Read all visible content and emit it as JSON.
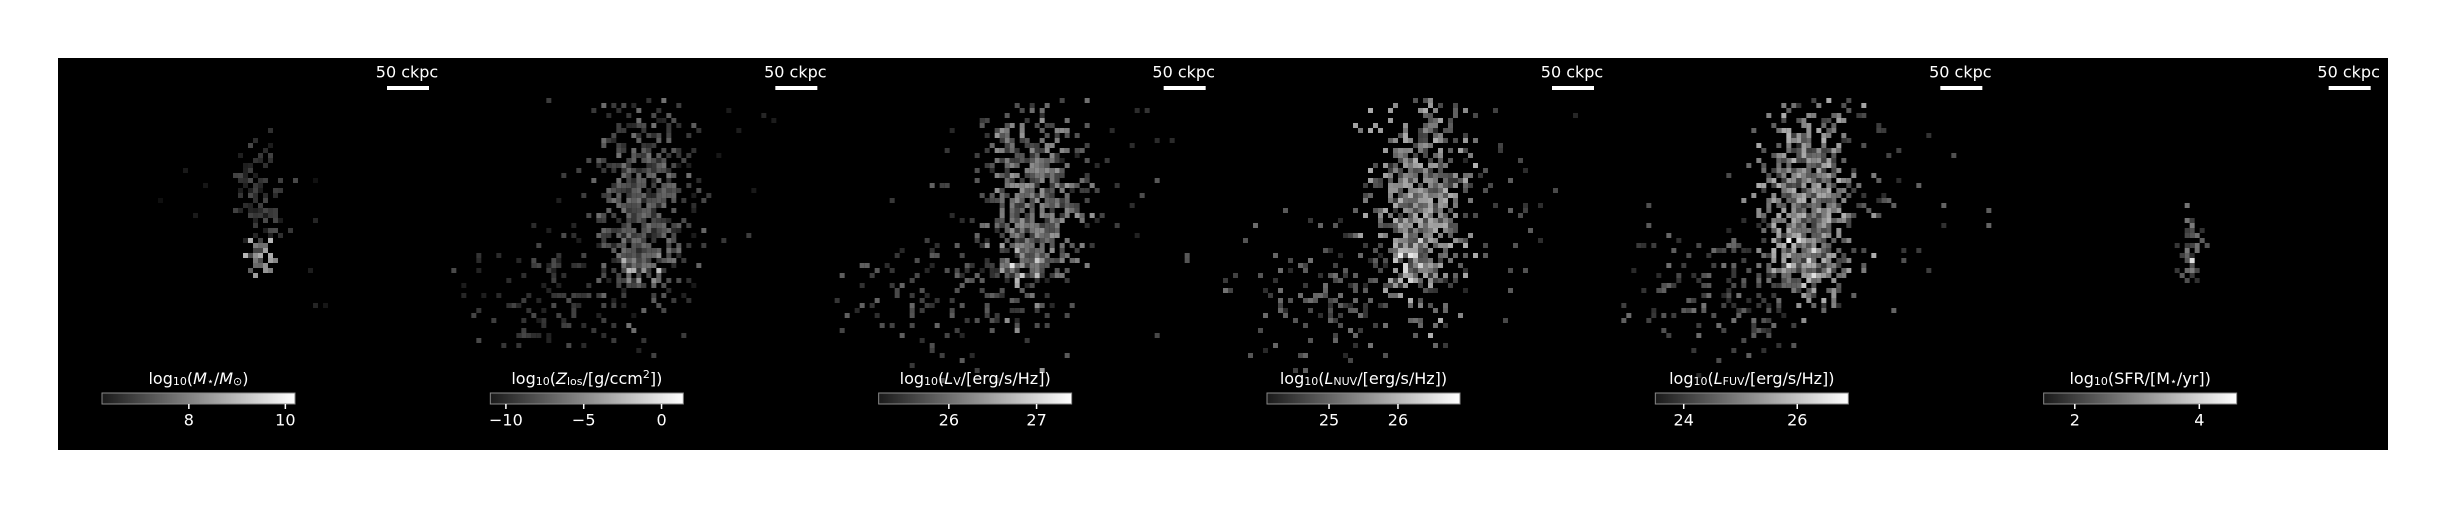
{
  "panels": [
    {
      "scale_bar": "50 ckpc",
      "colorbar": {
        "label": [
          {
            "text": "log"
          },
          {
            "text": "10",
            "style": "sub"
          },
          {
            "text": "("
          },
          {
            "text": "M",
            "style": "italic"
          },
          {
            "text": "⋆",
            "style": "sub"
          },
          {
            "text": "/"
          },
          {
            "text": "M",
            "style": "italic"
          },
          {
            "text": "⊙",
            "style": "sub"
          },
          {
            "text": ")"
          }
        ],
        "clim": [
          6.2,
          10.2
        ],
        "ticks": [
          8,
          10
        ]
      }
    },
    {
      "scale_bar": "50 ckpc",
      "colorbar": {
        "label": [
          {
            "text": "log"
          },
          {
            "text": "10",
            "style": "sub"
          },
          {
            "text": "("
          },
          {
            "text": "Z",
            "style": "italic"
          },
          {
            "text": "los",
            "style": "sub"
          },
          {
            "text": "/[g/ccm"
          },
          {
            "text": "2",
            "style": "sup"
          },
          {
            "text": "])"
          }
        ],
        "clim": [
          -11,
          1.4
        ],
        "ticks": [
          {
            "value": -10,
            "label": "−10"
          },
          {
            "value": -5,
            "label": "−5"
          },
          0
        ]
      }
    },
    {
      "scale_bar": "50 ckpc",
      "colorbar": {
        "label": [
          {
            "text": "log"
          },
          {
            "text": "10",
            "style": "sub"
          },
          {
            "text": "("
          },
          {
            "text": "L",
            "style": "italic"
          },
          {
            "text": "V",
            "style": "sub"
          },
          {
            "text": "/[erg/s/Hz])"
          }
        ],
        "clim": [
          25.2,
          27.4
        ],
        "ticks": [
          26,
          27
        ]
      }
    },
    {
      "scale_bar": "50 ckpc",
      "colorbar": {
        "label": [
          {
            "text": "log"
          },
          {
            "text": "10",
            "style": "sub"
          },
          {
            "text": "("
          },
          {
            "text": "L",
            "style": "italic"
          },
          {
            "text": "NUV",
            "style": "sub"
          },
          {
            "text": "/[erg/s/Hz])"
          }
        ],
        "clim": [
          24.1,
          26.9
        ],
        "ticks": [
          25,
          26
        ]
      }
    },
    {
      "scale_bar": "50 ckpc",
      "colorbar": {
        "label": [
          {
            "text": "log"
          },
          {
            "text": "10",
            "style": "sub"
          },
          {
            "text": "("
          },
          {
            "text": "L",
            "style": "italic"
          },
          {
            "text": "FUV",
            "style": "sub"
          },
          {
            "text": "/[erg/s/Hz])"
          }
        ],
        "clim": [
          23.5,
          26.9
        ],
        "ticks": [
          24,
          26
        ]
      }
    },
    {
      "scale_bar": "50 ckpc",
      "colorbar": {
        "label": [
          {
            "text": "log"
          },
          {
            "text": "10",
            "style": "sub"
          },
          {
            "text": "(SFR/[M"
          },
          {
            "text": "⋆",
            "style": "sub"
          },
          {
            "text": "/yr])"
          }
        ],
        "clim": [
          1.5,
          4.6
        ],
        "ticks": [
          2,
          4
        ]
      }
    }
  ]
}
